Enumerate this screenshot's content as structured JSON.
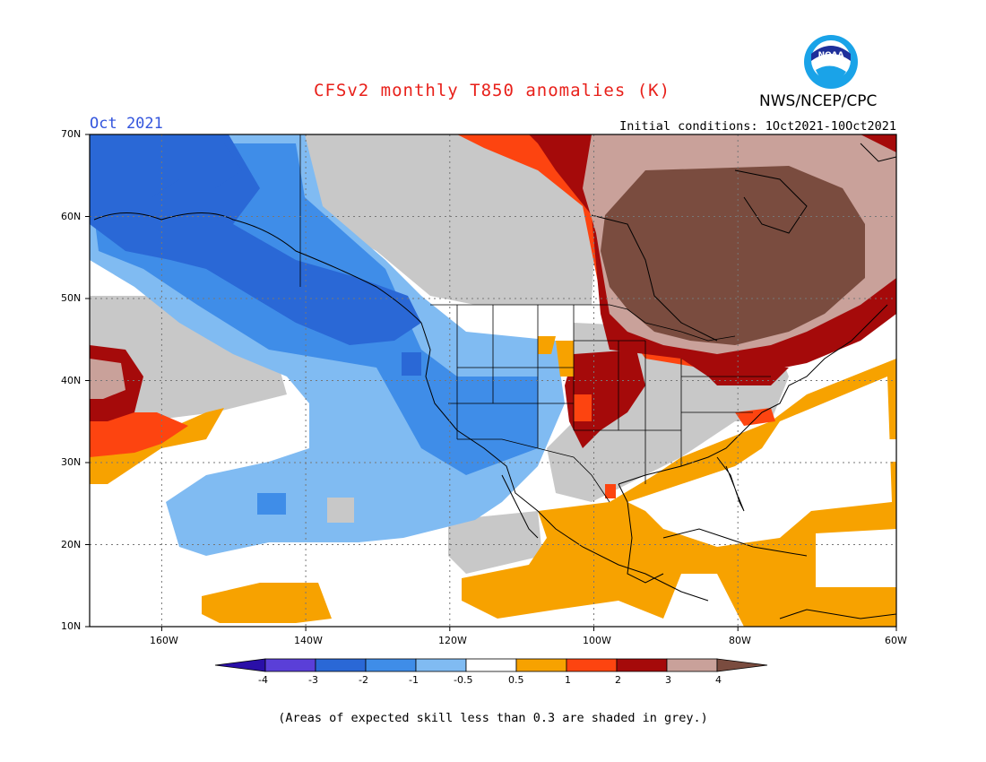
{
  "header": {
    "title": "CFSv2 monthly T850 anomalies (K)",
    "month": "Oct 2021",
    "agency": "NWS/NCEP/CPC",
    "initial_conditions": "Initial conditions: 1Oct2021-10Oct2021",
    "logo_text": "NOAA"
  },
  "map": {
    "lon_range": [
      -172,
      -60
    ],
    "lat_range": [
      10,
      70
    ],
    "lat_labels": [
      "70N",
      "60N",
      "50N",
      "40N",
      "30N",
      "20N",
      "10N"
    ],
    "lon_labels": [
      "160W",
      "140W",
      "120W",
      "100W",
      "80W",
      "60W"
    ],
    "grid": "dotted",
    "skill_shading": "grey"
  },
  "colorbar": {
    "levels": [
      "-4",
      "-3",
      "-2",
      "-1",
      "-0.5",
      "0.5",
      "1",
      "2",
      "3",
      "4"
    ],
    "colors": [
      "#2a0fa8",
      "#5a3fd8",
      "#2a68d6",
      "#3f8de8",
      "#80bbf2",
      "#ffffff",
      "#f7a200",
      "#fd4410",
      "#a50a0a",
      "#c9a19a",
      "#7a4c3f"
    ]
  },
  "footer": {
    "note": "(Areas of expected skill less than 0.3 are shaded in grey.)"
  }
}
